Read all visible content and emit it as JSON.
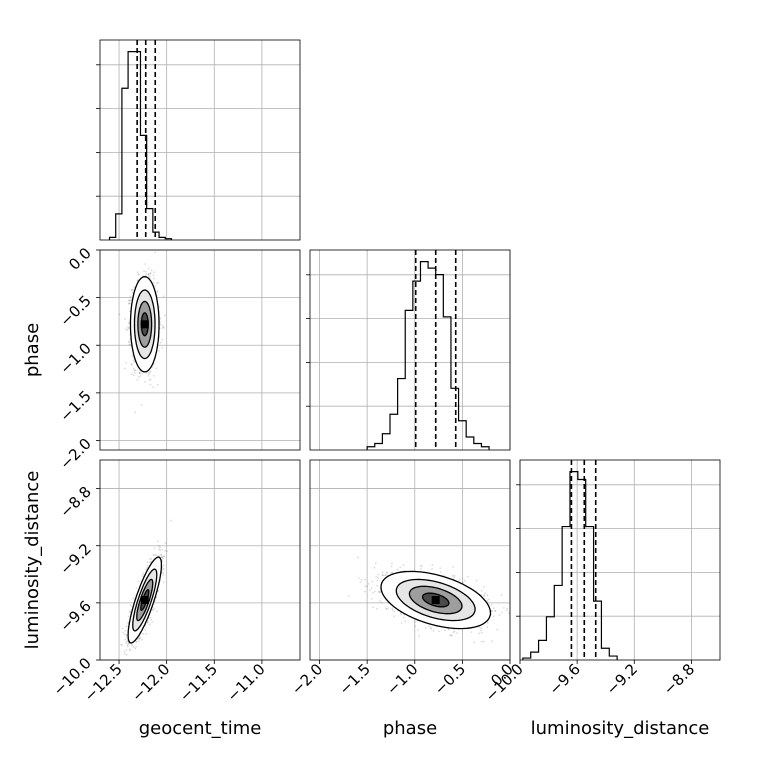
{
  "chart_data": {
    "type": "corner",
    "grid": true,
    "parameters": [
      {
        "name": "geocent_time",
        "range": [
          -12.7,
          -10.6
        ],
        "ticks": [
          -12.5,
          -12.0,
          -11.5,
          -11.0
        ],
        "tick_labels": [
          "−12.5",
          "−12.0",
          "−11.5",
          "−11.0"
        ],
        "quantiles": [
          -12.31,
          -12.22,
          -12.12
        ],
        "hist_edges_start": -12.6,
        "hist_bin_width": 0.065,
        "hist_counts": [
          1,
          10,
          58,
          72,
          72,
          40,
          12,
          3,
          1,
          0.5
        ]
      },
      {
        "name": "phase",
        "range": [
          -2.1,
          0.0
        ],
        "ticks": [
          -2.0,
          -1.5,
          -1.0,
          -0.5,
          0.0
        ],
        "tick_labels": [
          "−2.0",
          "−1.5",
          "−1.0",
          "−0.5",
          "0.0"
        ],
        "quantiles": [
          -0.99,
          -0.78,
          -0.57
        ],
        "hist_edges_start": -1.5,
        "hist_bin_width": 0.08,
        "hist_counts": [
          1,
          2,
          5,
          11,
          22,
          43,
          52,
          58,
          56,
          54,
          41,
          19,
          9,
          4,
          2,
          1
        ]
      },
      {
        "name": "luminosity_distance",
        "range": [
          -10.0,
          -8.6
        ],
        "ticks": [
          -10.0,
          -9.6,
          -9.2,
          -8.8
        ],
        "tick_labels": [
          "−10.0",
          "−9.6",
          "−9.2",
          "−8.8"
        ],
        "quantiles": [
          -9.64,
          -9.55,
          -9.47
        ],
        "hist_edges_start": -9.98,
        "hist_bin_width": 0.055,
        "hist_counts": [
          1,
          4,
          10,
          22,
          38,
          68,
          96,
          92,
          68,
          30,
          6,
          2
        ]
      }
    ],
    "pairs": [
      {
        "x": "geocent_time",
        "y": "phase",
        "mean": [
          -12.23,
          -0.78
        ],
        "sd": [
          0.06,
          0.2
        ],
        "rho": 0.0,
        "levels": [
          0.6,
          1.2,
          1.8,
          2.5
        ]
      },
      {
        "x": "geocent_time",
        "y": "luminosity_distance",
        "mean": [
          -12.23,
          -9.58
        ],
        "sd": [
          0.07,
          0.12
        ],
        "rho": 0.82,
        "levels": [
          0.6,
          1.2,
          1.8,
          2.5
        ]
      },
      {
        "x": "phase",
        "y": "luminosity_distance",
        "mean": [
          -0.78,
          -9.58
        ],
        "sd": [
          0.23,
          0.08
        ],
        "rho": -0.45,
        "levels": [
          0.6,
          1.2,
          1.8,
          2.5
        ]
      }
    ]
  }
}
